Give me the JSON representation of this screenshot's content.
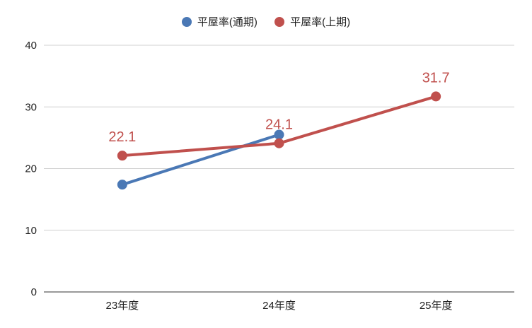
{
  "chart_data": {
    "type": "line",
    "title": "",
    "xlabel": "",
    "ylabel": "",
    "categories": [
      "23年度",
      "24年度",
      "25年度"
    ],
    "ylim": [
      0,
      40
    ],
    "yticks": [
      0,
      10,
      20,
      30,
      40
    ],
    "grid": true,
    "legend_position": "top",
    "series": [
      {
        "name": "平屋率(通期)",
        "color": "#4a78b5",
        "values": [
          17.4,
          25.5,
          null
        ],
        "data_labels": [
          null,
          null,
          null
        ]
      },
      {
        "name": "平屋率(上期)",
        "color": "#c0504d",
        "values": [
          22.1,
          24.1,
          31.7
        ],
        "data_labels": [
          "22.1",
          "24.1",
          "31.7"
        ]
      }
    ]
  }
}
